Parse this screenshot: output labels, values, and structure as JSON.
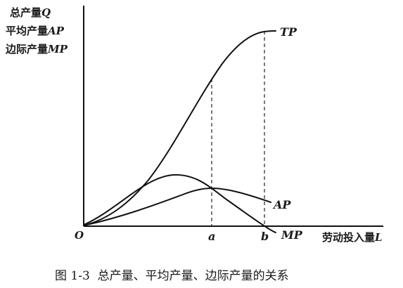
{
  "y_axis_labels": [
    {
      "cn": "总产量",
      "sym": "Q"
    },
    {
      "cn": "平均产量",
      "sym": "AP"
    },
    {
      "cn": "边际产量",
      "sym": "MP"
    }
  ],
  "x_axis_label": {
    "cn": "劳动投入量",
    "sym": "L"
  },
  "origin_label": "O",
  "x_ticks": {
    "a": "a",
    "b": "b"
  },
  "curves": {
    "tp": "TP",
    "ap": "AP",
    "mp": "MP"
  },
  "caption": "图 1-3  总产量、平均产量、边际产量的关系"
}
